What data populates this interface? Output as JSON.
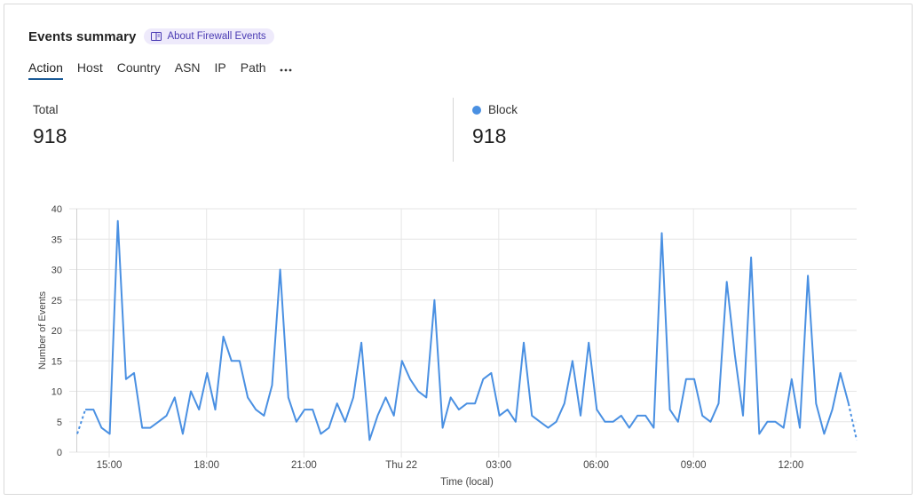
{
  "header": {
    "title": "Events summary",
    "about_label": "About Firewall Events"
  },
  "tabs": [
    "Action",
    "Host",
    "Country",
    "ASN",
    "IP",
    "Path"
  ],
  "active_tab": "Action",
  "more_icon": "ellipsis-icon",
  "stats": {
    "total_label": "Total",
    "total_value": "918",
    "block_label": "Block",
    "block_value": "918",
    "block_color": "#4a90e2"
  },
  "colors": {
    "line": "#4a90e2",
    "grid": "#e6e6e6",
    "about_bg": "#eeeafb",
    "about_text": "#4a3bb3",
    "tab_underline": "#1a5a96"
  },
  "chart_data": {
    "type": "line",
    "xlabel": "Time (local)",
    "ylabel": "Number of Events",
    "ylim": [
      0,
      40
    ],
    "yticks": [
      0,
      5,
      10,
      15,
      20,
      25,
      30,
      35,
      40
    ],
    "xticks": [
      "15:00",
      "18:00",
      "21:00",
      "Thu 22",
      "03:00",
      "06:00",
      "09:00",
      "12:00"
    ],
    "grid": true,
    "series": [
      {
        "name": "Block",
        "values": [
          3,
          7,
          7,
          4,
          3,
          38,
          12,
          13,
          4,
          4,
          5,
          6,
          9,
          3,
          10,
          7,
          13,
          7,
          19,
          15,
          15,
          9,
          7,
          6,
          11,
          30,
          9,
          5,
          7,
          7,
          3,
          4,
          8,
          5,
          9,
          18,
          2,
          6,
          9,
          6,
          15,
          12,
          10,
          9,
          25,
          4,
          9,
          7,
          8,
          8,
          12,
          13,
          6,
          7,
          5,
          18,
          6,
          5,
          4,
          5,
          8,
          15,
          6,
          18,
          7,
          5,
          5,
          6,
          4,
          6,
          6,
          4,
          36,
          7,
          5,
          12,
          12,
          6,
          5,
          8,
          28,
          16,
          6,
          32,
          3,
          5,
          5,
          4,
          12,
          4,
          29,
          8,
          3,
          7,
          13,
          8,
          2
        ]
      }
    ]
  }
}
